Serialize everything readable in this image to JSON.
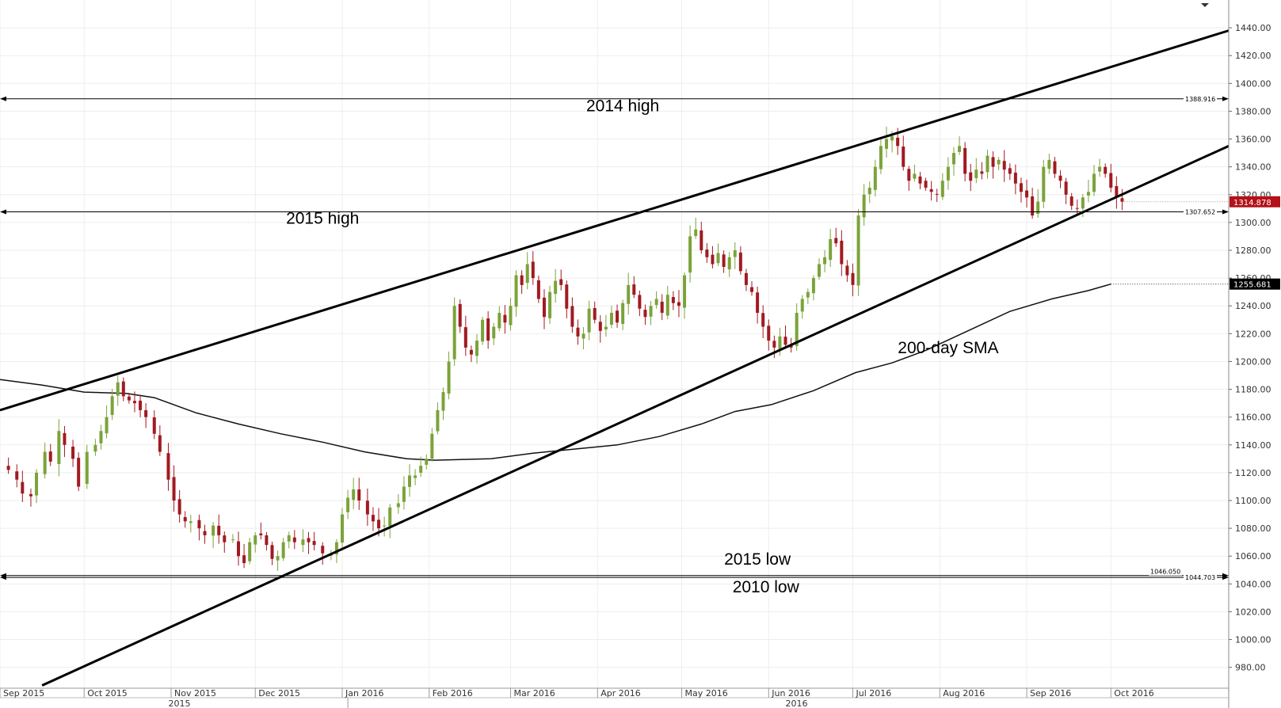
{
  "chart_data": {
    "type": "candlestick",
    "instrument_label": "",
    "ylim": [
      965,
      1460
    ],
    "y_ticks": [
      "1440.00",
      "1420.00",
      "1400.00",
      "1380.00",
      "1360.00",
      "1340.00",
      "1320.00",
      "1300.00",
      "1280.00",
      "1260.00",
      "1240.00",
      "1220.00",
      "1200.00",
      "1180.00",
      "1160.00",
      "1140.00",
      "1120.00",
      "1100.00",
      "1080.00",
      "1060.00",
      "1040.00",
      "1020.00",
      "1000.00",
      "980.00"
    ],
    "y_tick_values": [
      1440,
      1420,
      1400,
      1380,
      1360,
      1340,
      1320,
      1300,
      1280,
      1260,
      1240,
      1220,
      1200,
      1180,
      1160,
      1140,
      1120,
      1100,
      1080,
      1060,
      1040,
      1020,
      1000,
      980
    ],
    "x_months": [
      {
        "label": "Sep 2015",
        "day": 0
      },
      {
        "label": "Oct 2015",
        "day": 30
      },
      {
        "label": "Nov 2015",
        "day": 61
      },
      {
        "label": "Dec 2015",
        "day": 91
      },
      {
        "label": "Jan 2016",
        "day": 122
      },
      {
        "label": "Feb 2016",
        "day": 153
      },
      {
        "label": "Mar 2016",
        "day": 182
      },
      {
        "label": "Apr 2016",
        "day": 213
      },
      {
        "label": "May 2016",
        "day": 243
      },
      {
        "label": "Jun 2016",
        "day": 274
      },
      {
        "label": "Jul 2016",
        "day": 304
      },
      {
        "label": "Aug 2016",
        "day": 335
      },
      {
        "label": "Sep 2016",
        "day": 366
      },
      {
        "label": "Oct 2016",
        "day": 396
      }
    ],
    "x_years": [
      {
        "label": "2015",
        "day": 60
      },
      {
        "label": "2016",
        "day": 280
      }
    ],
    "x_domain_days": [
      0,
      438
    ],
    "close_series": [
      [
        0,
        1125
      ],
      [
        3,
        1122
      ],
      [
        6,
        1115
      ],
      [
        8,
        1105
      ],
      [
        11,
        1103
      ],
      [
        13,
        1120
      ],
      [
        16,
        1135
      ],
      [
        18,
        1128
      ],
      [
        21,
        1150
      ],
      [
        23,
        1140
      ],
      [
        26,
        1130
      ],
      [
        28,
        1110
      ],
      [
        31,
        1135
      ],
      [
        34,
        1140
      ],
      [
        36,
        1150
      ],
      [
        38,
        1160
      ],
      [
        40,
        1175
      ],
      [
        42,
        1185
      ],
      [
        44,
        1175
      ],
      [
        46,
        1172
      ],
      [
        48,
        1170
      ],
      [
        50,
        1165
      ],
      [
        52,
        1160
      ],
      [
        55,
        1148
      ],
      [
        57,
        1135
      ],
      [
        60,
        1115
      ],
      [
        62,
        1100
      ],
      [
        64,
        1090
      ],
      [
        66,
        1085
      ],
      [
        68,
        1085
      ],
      [
        71,
        1080
      ],
      [
        73,
        1075
      ],
      [
        76,
        1082
      ],
      [
        78,
        1075
      ],
      [
        80,
        1070
      ],
      [
        83,
        1072
      ],
      [
        85,
        1060
      ],
      [
        87,
        1055
      ],
      [
        89,
        1070
      ],
      [
        91,
        1075
      ],
      [
        93,
        1075
      ],
      [
        95,
        1068
      ],
      [
        97,
        1058
      ],
      [
        99,
        1060
      ],
      [
        101,
        1070
      ],
      [
        103,
        1075
      ],
      [
        105,
        1070
      ],
      [
        108,
        1072
      ],
      [
        110,
        1070
      ],
      [
        112,
        1068
      ],
      [
        115,
        1062
      ],
      [
        118,
        1062
      ],
      [
        120,
        1070
      ],
      [
        122,
        1090
      ],
      [
        124,
        1102
      ],
      [
        126,
        1108
      ],
      [
        128,
        1100
      ],
      [
        131,
        1090
      ],
      [
        133,
        1085
      ],
      [
        135,
        1080
      ],
      [
        137,
        1082
      ],
      [
        139,
        1095
      ],
      [
        142,
        1098
      ],
      [
        144,
        1110
      ],
      [
        146,
        1118
      ],
      [
        148,
        1118
      ],
      [
        150,
        1125
      ],
      [
        152,
        1130
      ],
      [
        154,
        1148
      ],
      [
        156,
        1165
      ],
      [
        158,
        1178
      ],
      [
        160,
        1200
      ],
      [
        162,
        1240
      ],
      [
        164,
        1225
      ],
      [
        166,
        1210
      ],
      [
        168,
        1205
      ],
      [
        170,
        1215
      ],
      [
        172,
        1230
      ],
      [
        174,
        1215
      ],
      [
        176,
        1225
      ],
      [
        178,
        1235
      ],
      [
        180,
        1228
      ],
      [
        182,
        1240
      ],
      [
        184,
        1262
      ],
      [
        186,
        1255
      ],
      [
        188,
        1270
      ],
      [
        190,
        1260
      ],
      [
        192,
        1245
      ],
      [
        194,
        1232
      ],
      [
        196,
        1250
      ],
      [
        198,
        1258
      ],
      [
        200,
        1255
      ],
      [
        202,
        1238
      ],
      [
        204,
        1225
      ],
      [
        206,
        1218
      ],
      [
        208,
        1220
      ],
      [
        210,
        1238
      ],
      [
        212,
        1230
      ],
      [
        214,
        1222
      ],
      [
        216,
        1225
      ],
      [
        218,
        1235
      ],
      [
        220,
        1228
      ],
      [
        222,
        1242
      ],
      [
        224,
        1255
      ],
      [
        226,
        1248
      ],
      [
        228,
        1238
      ],
      [
        230,
        1232
      ],
      [
        232,
        1240
      ],
      [
        234,
        1245
      ],
      [
        236,
        1235
      ],
      [
        238,
        1248
      ],
      [
        240,
        1242
      ],
      [
        242,
        1240
      ],
      [
        244,
        1262
      ],
      [
        246,
        1290
      ],
      [
        248,
        1295
      ],
      [
        250,
        1280
      ],
      [
        252,
        1275
      ],
      [
        254,
        1270
      ],
      [
        256,
        1278
      ],
      [
        258,
        1268
      ],
      [
        260,
        1275
      ],
      [
        262,
        1280
      ],
      [
        264,
        1265
      ],
      [
        266,
        1255
      ],
      [
        268,
        1250
      ],
      [
        270,
        1235
      ],
      [
        272,
        1225
      ],
      [
        274,
        1215
      ],
      [
        276,
        1210
      ],
      [
        278,
        1218
      ],
      [
        280,
        1212
      ],
      [
        282,
        1210
      ],
      [
        284,
        1235
      ],
      [
        286,
        1245
      ],
      [
        288,
        1250
      ],
      [
        290,
        1260
      ],
      [
        292,
        1270
      ],
      [
        294,
        1275
      ],
      [
        296,
        1288
      ],
      [
        298,
        1285
      ],
      [
        300,
        1270
      ],
      [
        302,
        1262
      ],
      [
        304,
        1255
      ],
      [
        306,
        1305
      ],
      [
        308,
        1320
      ],
      [
        310,
        1325
      ],
      [
        312,
        1340
      ],
      [
        314,
        1355
      ],
      [
        316,
        1360
      ],
      [
        318,
        1362
      ],
      [
        320,
        1355
      ],
      [
        322,
        1340
      ],
      [
        324,
        1330
      ],
      [
        326,
        1335
      ],
      [
        328,
        1328
      ],
      [
        330,
        1325
      ],
      [
        332,
        1322
      ],
      [
        334,
        1320
      ],
      [
        336,
        1330
      ],
      [
        338,
        1340
      ],
      [
        340,
        1350
      ],
      [
        342,
        1355
      ],
      [
        344,
        1335
      ],
      [
        346,
        1330
      ],
      [
        348,
        1338
      ],
      [
        350,
        1335
      ],
      [
        352,
        1348
      ],
      [
        354,
        1340
      ],
      [
        356,
        1345
      ],
      [
        358,
        1338
      ],
      [
        360,
        1335
      ],
      [
        362,
        1328
      ],
      [
        364,
        1322
      ],
      [
        366,
        1318
      ],
      [
        368,
        1305
      ],
      [
        370,
        1315
      ],
      [
        372,
        1340
      ],
      [
        374,
        1345
      ],
      [
        376,
        1335
      ],
      [
        378,
        1330
      ],
      [
        380,
        1320
      ],
      [
        382,
        1312
      ],
      [
        384,
        1310
      ],
      [
        386,
        1318
      ],
      [
        388,
        1322
      ],
      [
        390,
        1335
      ],
      [
        392,
        1340
      ],
      [
        394,
        1335
      ],
      [
        396,
        1325
      ],
      [
        398,
        1318
      ],
      [
        400,
        1314.878
      ]
    ],
    "sma_series": [
      [
        0,
        1187
      ],
      [
        15,
        1183
      ],
      [
        30,
        1178
      ],
      [
        45,
        1177
      ],
      [
        55,
        1174
      ],
      [
        70,
        1163
      ],
      [
        85,
        1155
      ],
      [
        100,
        1148
      ],
      [
        115,
        1142
      ],
      [
        130,
        1135
      ],
      [
        145,
        1130
      ],
      [
        155,
        1129
      ],
      [
        175,
        1130
      ],
      [
        190,
        1134
      ],
      [
        205,
        1137
      ],
      [
        220,
        1140
      ],
      [
        235,
        1146
      ],
      [
        250,
        1155
      ],
      [
        262,
        1164
      ],
      [
        275,
        1169
      ],
      [
        290,
        1179
      ],
      [
        305,
        1192
      ],
      [
        318,
        1199
      ],
      [
        330,
        1208
      ],
      [
        345,
        1222
      ],
      [
        360,
        1236
      ],
      [
        375,
        1245
      ],
      [
        388,
        1251
      ],
      [
        396,
        1255.681
      ]
    ],
    "trendlines": [
      {
        "name": "upper channel",
        "from": [
          0,
          1165
        ],
        "to": [
          438,
          1438
        ]
      },
      {
        "name": "lower channel",
        "from": [
          15,
          967
        ],
        "to": [
          438,
          1355
        ]
      }
    ],
    "horizontal_levels": [
      {
        "label": "2014 high",
        "value": 1388.916,
        "value_label": "1388.916"
      },
      {
        "label": "2015 high",
        "value": 1307.652,
        "value_label": "1307.652"
      },
      {
        "label": "2015 low",
        "value": 1046.05,
        "value_label": "1046.050"
      },
      {
        "label": "2010 low",
        "value": 1044.703,
        "value_label": "1044.703"
      }
    ],
    "price_labels": [
      {
        "value": 1314.878,
        "text": "1314.878",
        "color": "#b3121a"
      },
      {
        "value": 1255.681,
        "text": "1255.681",
        "color": "#000000"
      }
    ],
    "annotations": [
      {
        "text": "2014 high",
        "day": 222,
        "value": 1380
      },
      {
        "text": "2015 high",
        "day": 115,
        "value": 1299
      },
      {
        "text": "2015 low",
        "day": 270,
        "value": 1054
      },
      {
        "text": "2010 low",
        "day": 273,
        "value": 1034
      },
      {
        "text": "200-day SMA",
        "day": 338,
        "value": 1206
      }
    ],
    "colors": {
      "up": "#7ba33a",
      "down": "#a11a22",
      "line": "#000000",
      "grid": "#eeeeee"
    },
    "grid": true
  }
}
